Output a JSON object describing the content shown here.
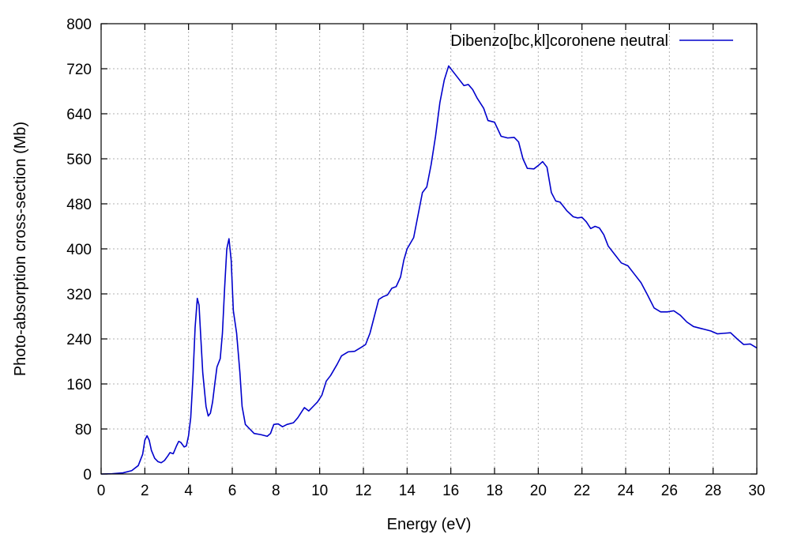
{
  "chart_data": {
    "type": "line",
    "title": "",
    "xlabel": "Energy (eV)",
    "ylabel": "Photo-absorption cross-section (Mb)",
    "xlim": [
      0,
      30
    ],
    "ylim": [
      0,
      800
    ],
    "x_ticks": [
      0,
      2,
      4,
      6,
      8,
      10,
      12,
      14,
      16,
      18,
      20,
      22,
      24,
      26,
      28,
      30
    ],
    "y_ticks": [
      0,
      80,
      160,
      240,
      320,
      400,
      480,
      560,
      640,
      720,
      800
    ],
    "grid": true,
    "legend_position": "top-right",
    "series": [
      {
        "name": "Dibenzo[bc,kl]coronene neutral",
        "color": "#0000cc",
        "points": [
          [
            0.0,
            0
          ],
          [
            0.5,
            0.5
          ],
          [
            1.0,
            2
          ],
          [
            1.4,
            6
          ],
          [
            1.7,
            15
          ],
          [
            1.9,
            35
          ],
          [
            2.0,
            60
          ],
          [
            2.1,
            68
          ],
          [
            2.2,
            60
          ],
          [
            2.3,
            42
          ],
          [
            2.45,
            28
          ],
          [
            2.6,
            22
          ],
          [
            2.75,
            20
          ],
          [
            2.9,
            24
          ],
          [
            3.05,
            32
          ],
          [
            3.15,
            38
          ],
          [
            3.3,
            36
          ],
          [
            3.45,
            50
          ],
          [
            3.55,
            58
          ],
          [
            3.65,
            56
          ],
          [
            3.8,
            48
          ],
          [
            3.9,
            50
          ],
          [
            4.0,
            68
          ],
          [
            4.1,
            100
          ],
          [
            4.2,
            170
          ],
          [
            4.3,
            260
          ],
          [
            4.4,
            312
          ],
          [
            4.48,
            300
          ],
          [
            4.55,
            250
          ],
          [
            4.65,
            180
          ],
          [
            4.8,
            120
          ],
          [
            4.9,
            103
          ],
          [
            5.0,
            108
          ],
          [
            5.1,
            128
          ],
          [
            5.2,
            160
          ],
          [
            5.3,
            190
          ],
          [
            5.45,
            205
          ],
          [
            5.55,
            250
          ],
          [
            5.65,
            330
          ],
          [
            5.75,
            400
          ],
          [
            5.85,
            418
          ],
          [
            5.95,
            380
          ],
          [
            6.05,
            290
          ],
          [
            6.2,
            250
          ],
          [
            6.35,
            180
          ],
          [
            6.45,
            120
          ],
          [
            6.6,
            88
          ],
          [
            6.8,
            80
          ],
          [
            7.0,
            72
          ],
          [
            7.3,
            70
          ],
          [
            7.6,
            67
          ],
          [
            7.75,
            72
          ],
          [
            7.9,
            88
          ],
          [
            8.1,
            89
          ],
          [
            8.3,
            84
          ],
          [
            8.5,
            88
          ],
          [
            8.8,
            91
          ],
          [
            9.0,
            100
          ],
          [
            9.3,
            118
          ],
          [
            9.5,
            112
          ],
          [
            9.7,
            120
          ],
          [
            9.9,
            128
          ],
          [
            10.1,
            140
          ],
          [
            10.3,
            165
          ],
          [
            10.5,
            175
          ],
          [
            10.8,
            195
          ],
          [
            11.0,
            210
          ],
          [
            11.3,
            217
          ],
          [
            11.6,
            218
          ],
          [
            11.9,
            225
          ],
          [
            12.1,
            230
          ],
          [
            12.3,
            250
          ],
          [
            12.5,
            280
          ],
          [
            12.7,
            310
          ],
          [
            12.9,
            315
          ],
          [
            13.1,
            318
          ],
          [
            13.3,
            330
          ],
          [
            13.5,
            333
          ],
          [
            13.7,
            350
          ],
          [
            13.85,
            380
          ],
          [
            14.0,
            400
          ],
          [
            14.3,
            420
          ],
          [
            14.5,
            460
          ],
          [
            14.7,
            500
          ],
          [
            14.9,
            510
          ],
          [
            15.1,
            550
          ],
          [
            15.3,
            600
          ],
          [
            15.5,
            660
          ],
          [
            15.7,
            700
          ],
          [
            15.9,
            725
          ],
          [
            16.1,
            715
          ],
          [
            16.3,
            705
          ],
          [
            16.6,
            690
          ],
          [
            16.8,
            692
          ],
          [
            17.0,
            683
          ],
          [
            17.2,
            668
          ],
          [
            17.5,
            650
          ],
          [
            17.7,
            628
          ],
          [
            18.0,
            625
          ],
          [
            18.3,
            600
          ],
          [
            18.6,
            597
          ],
          [
            18.9,
            598
          ],
          [
            19.1,
            590
          ],
          [
            19.3,
            560
          ],
          [
            19.5,
            543
          ],
          [
            19.8,
            542
          ],
          [
            20.0,
            548
          ],
          [
            20.2,
            555
          ],
          [
            20.4,
            545
          ],
          [
            20.6,
            500
          ],
          [
            20.8,
            485
          ],
          [
            21.0,
            483
          ],
          [
            21.3,
            468
          ],
          [
            21.6,
            457
          ],
          [
            21.8,
            455
          ],
          [
            22.0,
            456
          ],
          [
            22.2,
            448
          ],
          [
            22.4,
            436
          ],
          [
            22.6,
            440
          ],
          [
            22.8,
            437
          ],
          [
            23.0,
            425
          ],
          [
            23.2,
            405
          ],
          [
            23.5,
            390
          ],
          [
            23.8,
            375
          ],
          [
            24.1,
            370
          ],
          [
            24.4,
            355
          ],
          [
            24.7,
            340
          ],
          [
            25.0,
            318
          ],
          [
            25.3,
            295
          ],
          [
            25.6,
            288
          ],
          [
            25.9,
            288
          ],
          [
            26.2,
            290
          ],
          [
            26.5,
            282
          ],
          [
            26.8,
            270
          ],
          [
            27.1,
            262
          ],
          [
            27.5,
            258
          ],
          [
            27.9,
            254
          ],
          [
            28.2,
            249
          ],
          [
            28.5,
            250
          ],
          [
            28.8,
            251
          ],
          [
            29.1,
            240
          ],
          [
            29.4,
            230
          ],
          [
            29.7,
            231
          ],
          [
            30.0,
            224
          ]
        ]
      }
    ]
  }
}
